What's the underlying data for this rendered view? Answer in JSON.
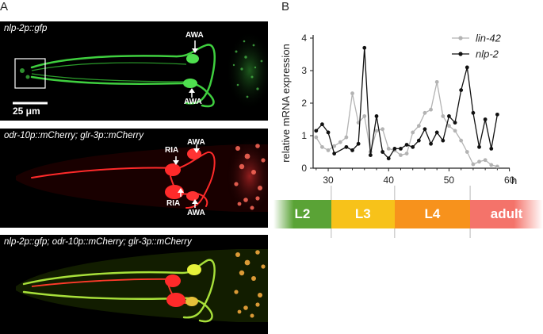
{
  "panel_a": {
    "letter": "A",
    "images": [
      {
        "label": "nlp-2p::gfp",
        "annotations": [
          "AWA",
          "AWA"
        ],
        "scale_bar": "25 μm"
      },
      {
        "label": "odr-10p::mCherry; glr-3p::mCherry",
        "annotations": [
          "AWA",
          "RIA",
          "RIA",
          "AWA"
        ]
      },
      {
        "label": "nlp-2p::gfp; odr-10p::mCherry; glr-3p::mCherry"
      }
    ]
  },
  "panel_b": {
    "letter": "B"
  },
  "chart_data": {
    "type": "line",
    "xlabel": "h",
    "ylabel": "relative mRNA expression",
    "xlim": [
      27.5,
      59
    ],
    "ylim": [
      0,
      4
    ],
    "xticks": [
      30,
      40,
      50,
      60
    ],
    "yticks": [
      0,
      1,
      2,
      3,
      4
    ],
    "series": [
      {
        "name": "lin-42",
        "color": "#b3b3b3",
        "x": [
          28,
          29,
          30,
          31,
          32,
          33,
          34,
          35,
          36,
          37,
          38,
          39,
          40,
          41,
          42,
          43,
          44,
          45,
          46,
          47,
          48,
          49,
          50,
          51,
          52,
          53,
          54,
          55,
          56,
          57,
          58
        ],
        "y": [
          0.95,
          0.65,
          0.55,
          0.68,
          0.8,
          0.95,
          2.3,
          1.4,
          1.6,
          0.5,
          1.15,
          1.2,
          0.6,
          0.55,
          0.4,
          0.45,
          1.1,
          1.3,
          1.7,
          1.8,
          2.65,
          1.6,
          1.3,
          1.15,
          0.85,
          0.5,
          0.12,
          0.2,
          0.25,
          0.1,
          0.05
        ]
      },
      {
        "name": "nlp-2",
        "color": "#111111",
        "x": [
          28,
          29,
          30,
          31,
          33,
          34,
          35,
          36,
          37,
          38,
          39,
          40,
          41,
          42,
          43,
          44,
          45,
          46,
          47,
          48,
          49,
          50,
          51,
          52,
          53,
          54,
          55,
          56,
          57,
          58
        ],
        "y": [
          1.15,
          1.35,
          1.1,
          0.45,
          0.65,
          0.55,
          0.75,
          3.7,
          0.4,
          1.6,
          0.5,
          0.3,
          0.6,
          0.6,
          0.72,
          0.65,
          0.85,
          1.2,
          0.75,
          1.1,
          0.85,
          1.6,
          1.4,
          2.4,
          3.1,
          1.7,
          0.65,
          1.5,
          0.6,
          1.65
        ]
      }
    ],
    "stages": [
      {
        "label": "L2",
        "color": "#5aa336"
      },
      {
        "label": "L3",
        "color": "#f7c21a"
      },
      {
        "label": "L4",
        "color": "#f7921c"
      },
      {
        "label": "adult",
        "color": "#f4736a"
      }
    ]
  }
}
